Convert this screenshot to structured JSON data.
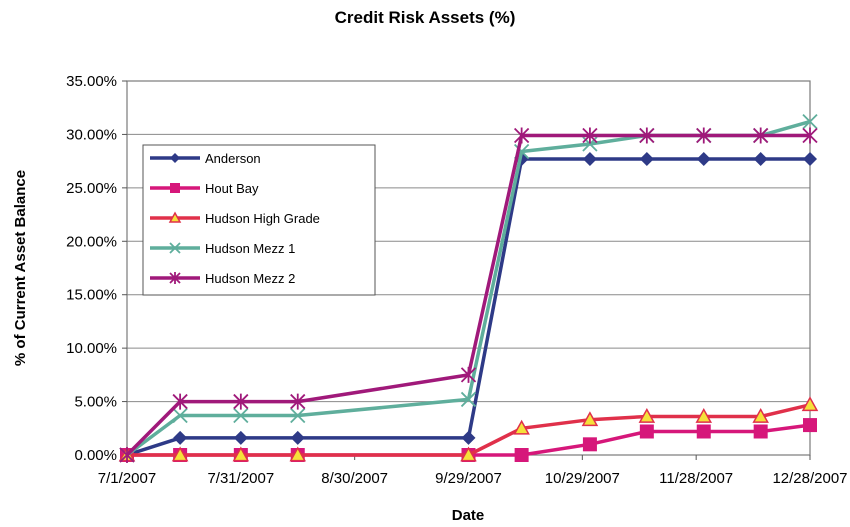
{
  "chart_data": {
    "type": "line",
    "title": "Credit Risk Assets (%)",
    "xlabel": "Date",
    "ylabel": "% of Current Asset Balance",
    "x_tick_labels": [
      "7/1/2007",
      "7/31/2007",
      "8/30/2007",
      "9/29/2007",
      "10/29/2007",
      "11/28/2007",
      "12/28/2007"
    ],
    "y_tick_labels": [
      "0.00%",
      "5.00%",
      "10.00%",
      "15.00%",
      "20.00%",
      "25.00%",
      "30.00%",
      "35.00%"
    ],
    "xlim": [
      "2007-07-01",
      "2007-12-28"
    ],
    "ylim": [
      0,
      35
    ],
    "grid": "horizontal",
    "legend": "upper-left",
    "series": [
      {
        "name": "Anderson",
        "color": "#2e3a87",
        "marker": "diamond",
        "x": [
          "2007-07-01",
          "2007-07-15",
          "2007-07-31",
          "2007-08-15",
          "2007-09-29",
          "2007-10-13",
          "2007-10-31",
          "2007-11-15",
          "2007-11-30",
          "2007-12-15",
          "2007-12-28"
        ],
        "y": [
          0.0,
          1.6,
          1.6,
          1.6,
          1.6,
          27.7,
          27.7,
          27.7,
          27.7,
          27.7,
          27.7
        ]
      },
      {
        "name": "Hout Bay",
        "color": "#d6177a",
        "marker": "square",
        "x": [
          "2007-07-01",
          "2007-07-15",
          "2007-07-31",
          "2007-08-15",
          "2007-09-29",
          "2007-10-13",
          "2007-10-31",
          "2007-11-15",
          "2007-11-30",
          "2007-12-15",
          "2007-12-28"
        ],
        "y": [
          0.0,
          0.0,
          0.0,
          0.0,
          0.0,
          0.0,
          1.0,
          2.2,
          2.2,
          2.2,
          2.8
        ]
      },
      {
        "name": "Hudson High Grade",
        "color": "#e0304a",
        "marker": "triangle",
        "x": [
          "2007-07-01",
          "2007-07-15",
          "2007-07-31",
          "2007-08-15",
          "2007-09-29",
          "2007-10-13",
          "2007-10-31",
          "2007-11-15",
          "2007-11-30",
          "2007-12-15",
          "2007-12-28"
        ],
        "y": [
          0.0,
          0.0,
          0.0,
          0.0,
          0.0,
          2.5,
          3.3,
          3.6,
          3.6,
          3.6,
          4.7
        ]
      },
      {
        "name": "Hudson Mezz 1",
        "color": "#5fae9c",
        "marker": "x",
        "x": [
          "2007-07-01",
          "2007-07-15",
          "2007-07-31",
          "2007-08-15",
          "2007-09-29",
          "2007-10-13",
          "2007-10-31",
          "2007-11-15",
          "2007-11-30",
          "2007-12-15",
          "2007-12-28"
        ],
        "y": [
          0.0,
          3.7,
          3.7,
          3.7,
          5.2,
          28.4,
          29.1,
          29.9,
          29.9,
          29.9,
          31.2
        ]
      },
      {
        "name": "Hudson Mezz 2",
        "color": "#a0197a",
        "marker": "star",
        "x": [
          "2007-07-01",
          "2007-07-15",
          "2007-07-31",
          "2007-08-15",
          "2007-09-29",
          "2007-10-13",
          "2007-10-31",
          "2007-11-15",
          "2007-11-30",
          "2007-12-15",
          "2007-12-28"
        ],
        "y": [
          0.0,
          5.0,
          5.0,
          5.0,
          7.5,
          29.9,
          29.9,
          29.9,
          29.9,
          29.9,
          29.9
        ]
      }
    ]
  }
}
